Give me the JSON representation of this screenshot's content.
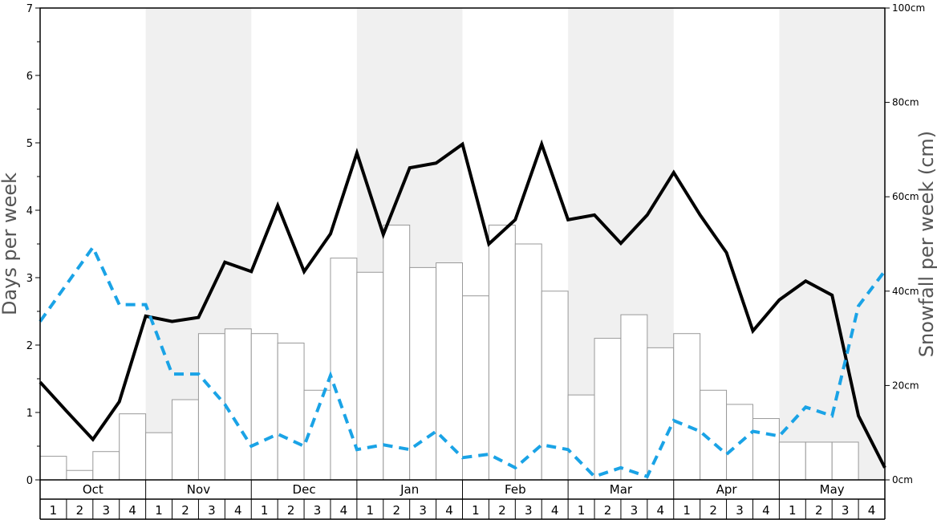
{
  "chart_data": {
    "type": "bar+line",
    "title": "",
    "ylabel_left": "Days per week",
    "ylabel_right": "Snowfall per week (cm)",
    "ylim_left": [
      0,
      7
    ],
    "ylim_right": [
      0,
      100
    ],
    "left_ticks": [
      "0",
      "1",
      "2",
      "3",
      "4",
      "5",
      "6",
      "7"
    ],
    "right_ticks": [
      "0cm",
      "20cm",
      "40cm",
      "60cm",
      "80cm",
      "100cm"
    ],
    "months": [
      "Oct",
      "Nov",
      "Dec",
      "Jan",
      "Feb",
      "Mar",
      "Apr",
      "May"
    ],
    "week_labels": [
      "1",
      "2",
      "3",
      "4"
    ],
    "shaded_months": [
      "Nov",
      "Jan",
      "Mar",
      "May"
    ],
    "grid": false,
    "colors": {
      "bars_fill": "#ffffff",
      "bars_stroke": "#999999",
      "solid_line": "#000000",
      "dashed_line": "#1aa3e6",
      "shade": "#f0f0f0"
    },
    "series": [
      {
        "kind": "bar",
        "axis": "right",
        "values": [
          5,
          2,
          6,
          14,
          10,
          17,
          31,
          32,
          31,
          29,
          19,
          47,
          44,
          54,
          45,
          46,
          39,
          54,
          50,
          40,
          18,
          30,
          35,
          28,
          31,
          19,
          16,
          13,
          8,
          8,
          8,
          0
        ]
      },
      {
        "kind": "line",
        "axis": "left",
        "style": "solid",
        "values": [
          1.45,
          1.02,
          0.6,
          1.16,
          2.43,
          2.35,
          2.41,
          3.23,
          3.09,
          4.07,
          3.09,
          3.65,
          4.85,
          3.64,
          4.63,
          4.7,
          4.98,
          3.5,
          3.86,
          4.98,
          3.86,
          3.93,
          3.51,
          3.93,
          4.56,
          3.93,
          3.37,
          2.21,
          2.67,
          2.95,
          2.74,
          0.95,
          0.18
        ]
      },
      {
        "kind": "line",
        "axis": "left",
        "style": "dashed",
        "values": [
          2.35,
          2.9,
          3.45,
          2.6,
          2.6,
          1.57,
          1.57,
          1.12,
          0.5,
          0.68,
          0.5,
          1.55,
          0.45,
          0.52,
          0.45,
          0.72,
          0.33,
          0.38,
          0.18,
          0.52,
          0.45,
          0.05,
          0.18,
          0.05,
          0.88,
          0.72,
          0.38,
          0.72,
          0.65,
          1.08,
          0.95,
          2.58,
          3.1
        ]
      }
    ]
  }
}
